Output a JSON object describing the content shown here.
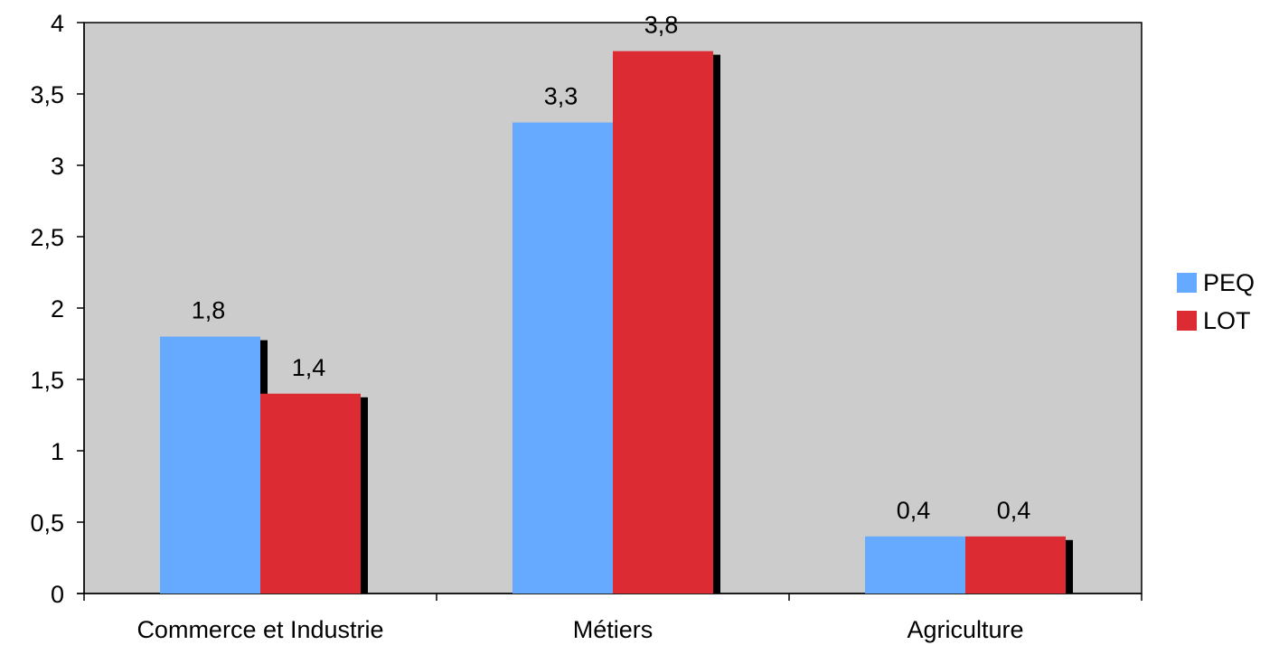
{
  "chart_data": {
    "type": "bar",
    "categories": [
      "Commerce et Industrie",
      "Métiers",
      "Agriculture"
    ],
    "series": [
      {
        "name": "PEQ",
        "values": [
          1.8,
          3.3,
          0.4
        ],
        "labels": [
          "1,8",
          "3,3",
          "0,4"
        ],
        "color": "#66aaff"
      },
      {
        "name": "LOT",
        "values": [
          1.4,
          3.8,
          0.4
        ],
        "labels": [
          "1,4",
          "3,8",
          "0,4"
        ],
        "color": "#dd2b33"
      }
    ],
    "ylim": [
      0,
      4
    ],
    "yticks": [
      0,
      0.5,
      1,
      1.5,
      2,
      2.5,
      3,
      3.5,
      4
    ],
    "ytick_labels": [
      "0",
      "0,5",
      "1",
      "1,5",
      "2",
      "2,5",
      "3",
      "3,5",
      "4"
    ],
    "title": "",
    "xlabel": "",
    "ylabel": "",
    "grid": false,
    "legend_position": "right",
    "plot_background": "#cccccc",
    "bar_shadow": "#000000"
  }
}
